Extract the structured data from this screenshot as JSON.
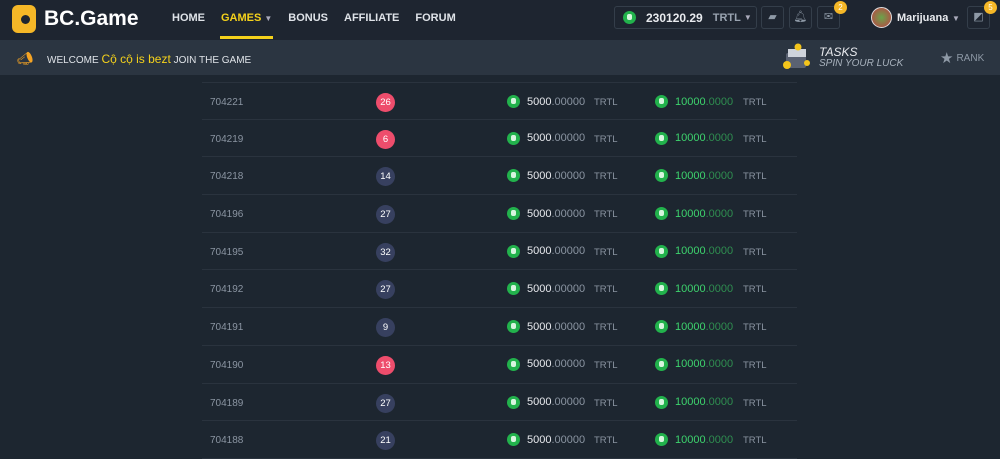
{
  "header": {
    "logo": "BC.Game",
    "nav": [
      {
        "label": "HOME"
      },
      {
        "label": "GAMES",
        "active": true
      },
      {
        "label": "BONUS"
      },
      {
        "label": "AFFILIATE"
      },
      {
        "label": "FORUM"
      }
    ],
    "wallet": {
      "balance": "230120.29",
      "currency": "TRTL"
    },
    "mail_badge": "2",
    "user": "Marijuana",
    "chat_badge": "5"
  },
  "subbar": {
    "welcome": "WELCOME",
    "name": "Cộ cộ is bezt",
    "join": "JOIN THE GAME",
    "tasks": "TASKS",
    "spin": "SPIN YOUR LUCK",
    "rank": "RANK"
  },
  "colors": {
    "accent": "#f4d11b",
    "red": "#ee4d6c",
    "blue": "#37405f",
    "green": "#3dd36d"
  },
  "rows": [
    {
      "id": "704221",
      "num": "26",
      "color": "red",
      "bet_int": "5000",
      "bet_dec": ".00000",
      "bet_cur": "TRTL",
      "pay_int": "10000",
      "pay_dec": ".0000",
      "pay_cur": "TRTL"
    },
    {
      "id": "704219",
      "num": "6",
      "color": "red",
      "bet_int": "5000",
      "bet_dec": ".00000",
      "bet_cur": "TRTL",
      "pay_int": "10000",
      "pay_dec": ".0000",
      "pay_cur": "TRTL"
    },
    {
      "id": "704218",
      "num": "14",
      "color": "blue",
      "bet_int": "5000",
      "bet_dec": ".00000",
      "bet_cur": "TRTL",
      "pay_int": "10000",
      "pay_dec": ".0000",
      "pay_cur": "TRTL"
    },
    {
      "id": "704196",
      "num": "27",
      "color": "blue",
      "bet_int": "5000",
      "bet_dec": ".00000",
      "bet_cur": "TRTL",
      "pay_int": "10000",
      "pay_dec": ".0000",
      "pay_cur": "TRTL"
    },
    {
      "id": "704195",
      "num": "32",
      "color": "blue",
      "bet_int": "5000",
      "bet_dec": ".00000",
      "bet_cur": "TRTL",
      "pay_int": "10000",
      "pay_dec": ".0000",
      "pay_cur": "TRTL"
    },
    {
      "id": "704192",
      "num": "27",
      "color": "blue",
      "bet_int": "5000",
      "bet_dec": ".00000",
      "bet_cur": "TRTL",
      "pay_int": "10000",
      "pay_dec": ".0000",
      "pay_cur": "TRTL"
    },
    {
      "id": "704191",
      "num": "9",
      "color": "blue",
      "bet_int": "5000",
      "bet_dec": ".00000",
      "bet_cur": "TRTL",
      "pay_int": "10000",
      "pay_dec": ".0000",
      "pay_cur": "TRTL"
    },
    {
      "id": "704190",
      "num": "13",
      "color": "red",
      "bet_int": "5000",
      "bet_dec": ".00000",
      "bet_cur": "TRTL",
      "pay_int": "10000",
      "pay_dec": ".0000",
      "pay_cur": "TRTL"
    },
    {
      "id": "704189",
      "num": "27",
      "color": "blue",
      "bet_int": "5000",
      "bet_dec": ".00000",
      "bet_cur": "TRTL",
      "pay_int": "10000",
      "pay_dec": ".0000",
      "pay_cur": "TRTL"
    },
    {
      "id": "704188",
      "num": "21",
      "color": "blue",
      "bet_int": "5000",
      "bet_dec": ".00000",
      "bet_cur": "TRTL",
      "pay_int": "10000",
      "pay_dec": ".0000",
      "pay_cur": "TRTL"
    }
  ]
}
